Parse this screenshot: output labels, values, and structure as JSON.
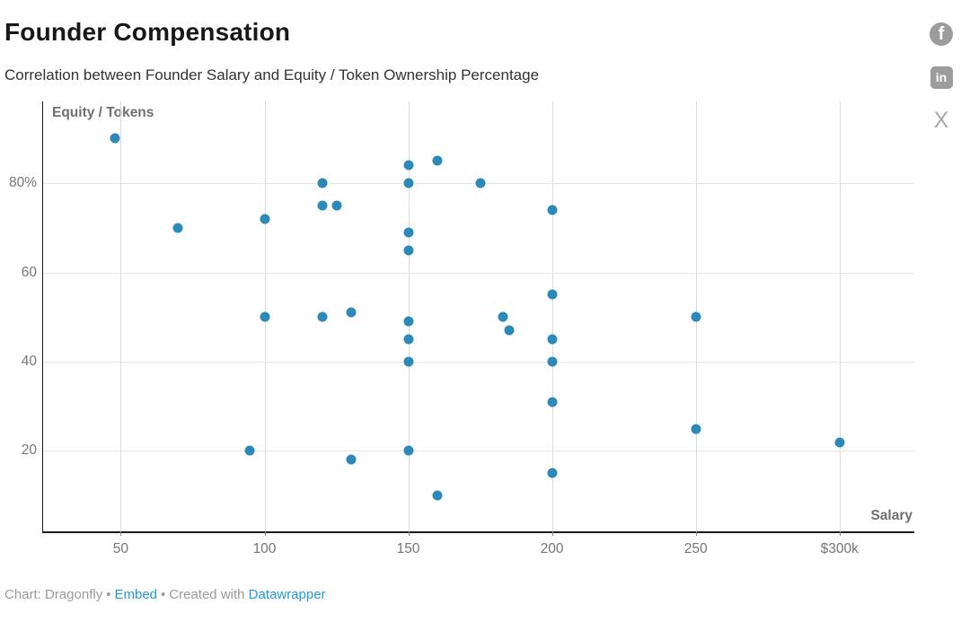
{
  "header": {
    "title": "Founder Compensation",
    "subtitle": "Correlation between Founder Salary and Equity / Token Ownership Percentage"
  },
  "social": {
    "facebook_label": "f",
    "linkedin_label": "in",
    "x_label": "X"
  },
  "chart_data": {
    "type": "scatter",
    "title": "Founder Compensation",
    "subtitle": "Correlation between Founder Salary and Equity / Token Ownership Percentage",
    "xlabel": "Salary",
    "ylabel": "Equity / Tokens",
    "grid": true,
    "legend": "none",
    "xlim": [
      23,
      326
    ],
    "ylim": [
      2,
      98.3
    ],
    "x_ticks": [
      {
        "value": 50,
        "label": "50"
      },
      {
        "value": 100,
        "label": "100"
      },
      {
        "value": 150,
        "label": "150"
      },
      {
        "value": 200,
        "label": "200"
      },
      {
        "value": 250,
        "label": "250"
      },
      {
        "value": 300,
        "label": "$300k"
      }
    ],
    "y_ticks": [
      {
        "value": 20,
        "label": "20"
      },
      {
        "value": 40,
        "label": "40"
      },
      {
        "value": 60,
        "label": "60"
      },
      {
        "value": 80,
        "label": "80%"
      }
    ],
    "point_color": "#2b8ab7",
    "points": [
      [
        48,
        90
      ],
      [
        70,
        70
      ],
      [
        95,
        20
      ],
      [
        100,
        72
      ],
      [
        100,
        50
      ],
      [
        120,
        80
      ],
      [
        120,
        75
      ],
      [
        120,
        50
      ],
      [
        125,
        75
      ],
      [
        130,
        51
      ],
      [
        130,
        18
      ],
      [
        150,
        84
      ],
      [
        150,
        80
      ],
      [
        150,
        69
      ],
      [
        150,
        65
      ],
      [
        150,
        49
      ],
      [
        150,
        45
      ],
      [
        150,
        40
      ],
      [
        150,
        20
      ],
      [
        160,
        85
      ],
      [
        160,
        10
      ],
      [
        175,
        80
      ],
      [
        183,
        50
      ],
      [
        185,
        47
      ],
      [
        200,
        74
      ],
      [
        200,
        55
      ],
      [
        200,
        45
      ],
      [
        200,
        40
      ],
      [
        200,
        31
      ],
      [
        200,
        15
      ],
      [
        250,
        50
      ],
      [
        250,
        25
      ],
      [
        300,
        22
      ]
    ]
  },
  "footer": {
    "prefix": "Chart: Dragonfly",
    "sep1": "•",
    "embed_label": "Embed",
    "sep2": "•",
    "created_with": "Created with",
    "datawrapper_label": "Datawrapper"
  }
}
